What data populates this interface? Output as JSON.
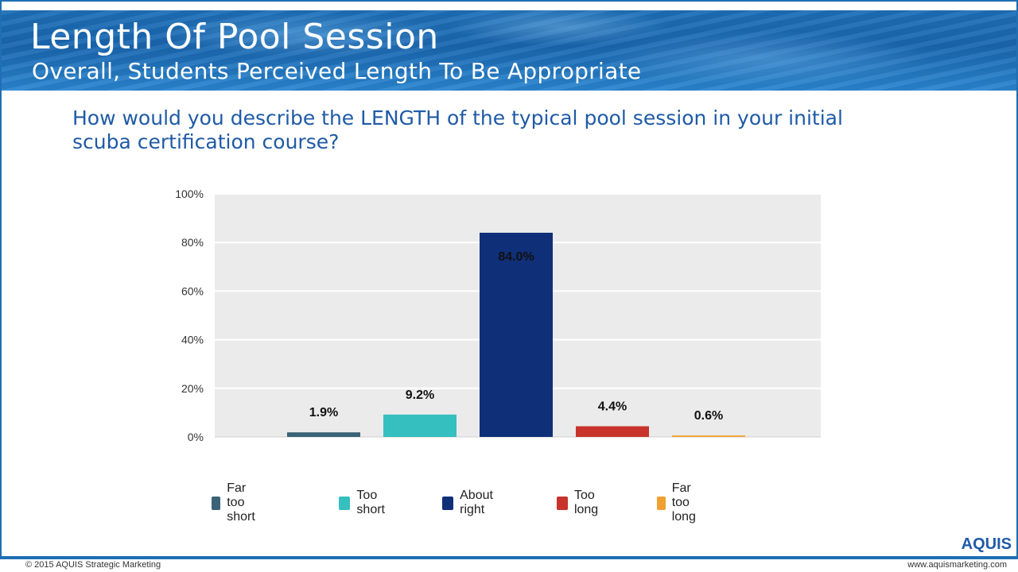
{
  "slide": {
    "title": "Length Of Pool Session",
    "subtitle": "Overall, Students Perceived Length To Be Appropriate",
    "question": "How would you describe the LENGTH of the typical pool session in your initial scuba certification course?"
  },
  "footer": {
    "copyright": "© 2015 AQUIS Strategic Marketing",
    "website": "www.aquismarketing.com",
    "logo": "AQUIS"
  },
  "colors": {
    "brand_blue": "#1f6fb5",
    "question_blue": "#1f5aa6",
    "plot_bg": "#ebebeb"
  },
  "chart_data": {
    "type": "bar",
    "title": "",
    "xlabel": "",
    "ylabel": "",
    "ylim": [
      0,
      100
    ],
    "yticks": [
      0,
      20,
      40,
      60,
      80,
      100
    ],
    "ytick_labels": [
      "0%",
      "20%",
      "40%",
      "60%",
      "80%",
      "100%"
    ],
    "grid": true,
    "legend_position": "bottom",
    "categories": [
      "Far too short",
      "Too short",
      "About right",
      "Too long",
      "Far too long"
    ],
    "values": [
      1.9,
      9.2,
      84.0,
      4.4,
      0.6
    ],
    "value_labels": [
      "1.9%",
      "9.2%",
      "84.0%",
      "4.4%",
      "0.6%"
    ],
    "colors": [
      "#3b6377",
      "#35bfbf",
      "#0f2f78",
      "#c8332c",
      "#f0a030"
    ]
  }
}
